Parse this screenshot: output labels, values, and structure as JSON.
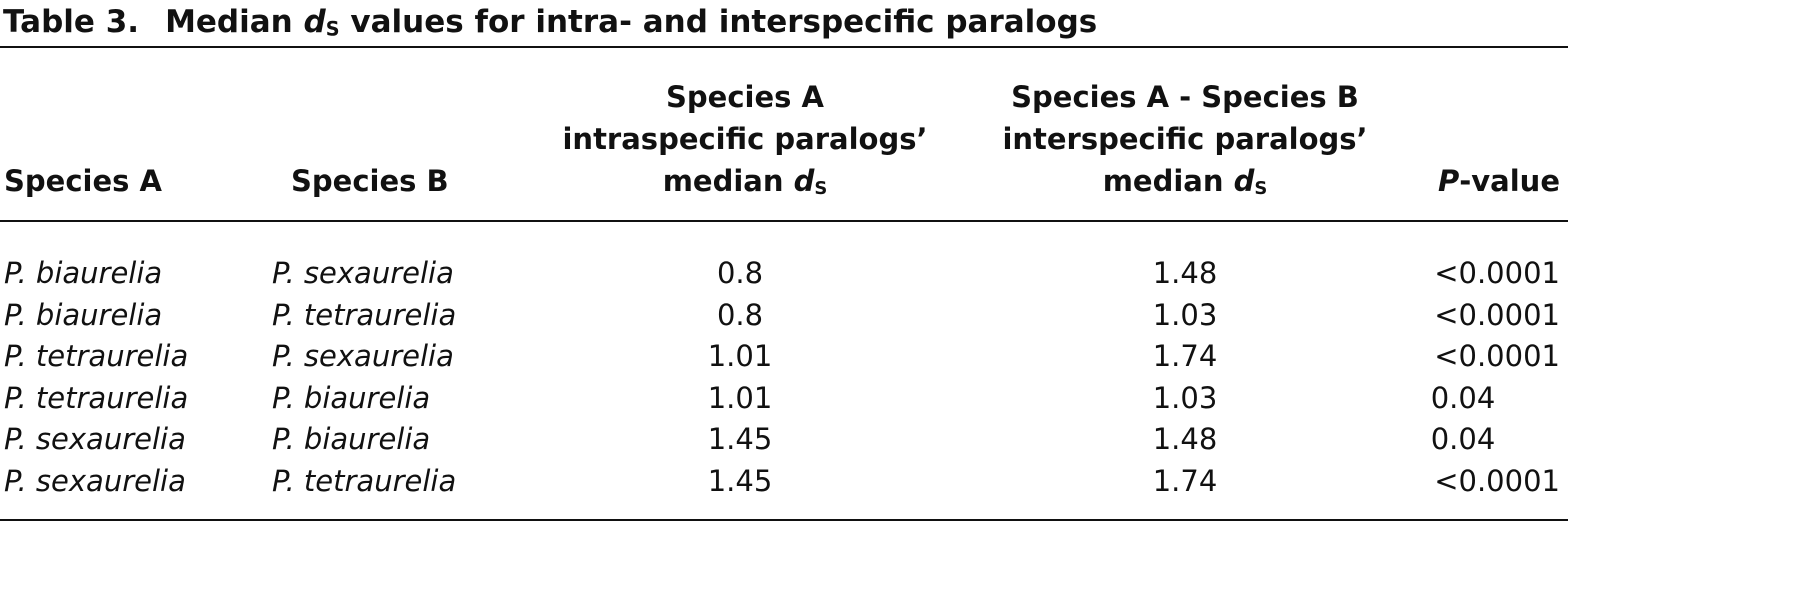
{
  "caption": {
    "label": "Table 3.",
    "title_pre": "Median ",
    "title_var": "d",
    "title_sub": "S",
    "title_post": " values for intra- and interspecific paralogs"
  },
  "header": {
    "species_a": "Species A",
    "species_b": "Species B",
    "intra_line1": "Species A",
    "intra_line2": "intraspecific paralogs’",
    "intra_line3_pre": "median ",
    "intra_line3_var": "d",
    "intra_line3_sub": "S",
    "inter_line1": "Species A - Species B",
    "inter_line2": "interspecific paralogs’",
    "inter_line3_pre": "median ",
    "inter_line3_var": "d",
    "inter_line3_sub": "S",
    "pvalue_var": "P",
    "pvalue_post": "-value"
  },
  "rows": [
    {
      "species_a": "P. biaurelia",
      "species_b": "P. sexaurelia",
      "intra": "0.8",
      "inter": "1.48",
      "p": "<0.0001"
    },
    {
      "species_a": "P. biaurelia",
      "species_b": "P. tetraurelia",
      "intra": "0.8",
      "inter": "1.03",
      "p": "<0.0001"
    },
    {
      "species_a": "P. tetraurelia",
      "species_b": "P. sexaurelia",
      "intra": "1.01",
      "inter": "1.74",
      "p": "<0.0001"
    },
    {
      "species_a": "P. tetraurelia",
      "species_b": "P. biaurelia",
      "intra": "1.01",
      "inter": "1.03",
      "p": "0.04"
    },
    {
      "species_a": "P. sexaurelia",
      "species_b": "P. biaurelia",
      "intra": "1.45",
      "inter": "1.48",
      "p": "0.04"
    },
    {
      "species_a": "P. sexaurelia",
      "species_b": "P. tetraurelia",
      "intra": "1.45",
      "inter": "1.74",
      "p": "<0.0001"
    }
  ]
}
